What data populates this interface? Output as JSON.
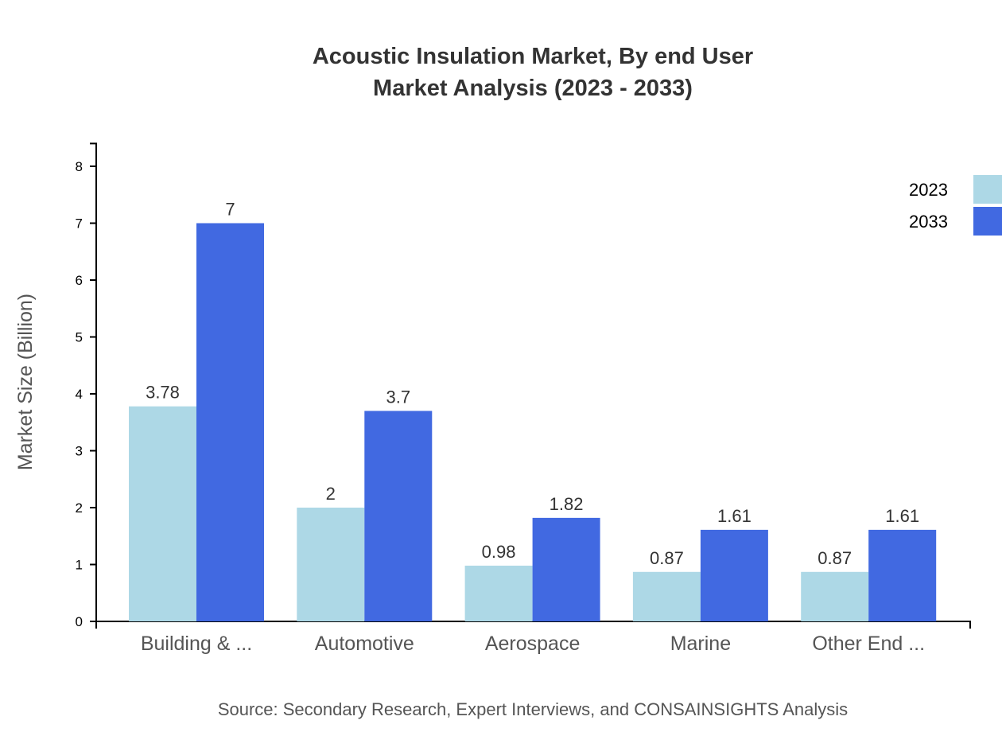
{
  "chart_data": {
    "type": "bar",
    "title": [
      "Acoustic Insulation Market, By end User",
      "Market Analysis (2023 - 2033)"
    ],
    "ylabel": "Market Size (Billion)",
    "xlabel": "",
    "categories": [
      "Building & ...",
      "Automotive",
      "Aerospace",
      "Marine",
      "Other End ..."
    ],
    "series": [
      {
        "name": "2023",
        "color": "#ADD8E6",
        "values": [
          3.78,
          2,
          0.98,
          0.87,
          0.87
        ]
      },
      {
        "name": "2033",
        "color": "#4169E1",
        "values": [
          7,
          3.7,
          1.82,
          1.61,
          1.61
        ]
      }
    ],
    "ylim": [
      0,
      8.4
    ],
    "yticks": [
      0,
      1,
      2,
      3,
      4,
      5,
      6,
      7,
      8
    ],
    "grid": false,
    "legend": "top-right",
    "source": "Source: Secondary Research, Expert Interviews, and CONSAINSIGHTS Analysis"
  }
}
